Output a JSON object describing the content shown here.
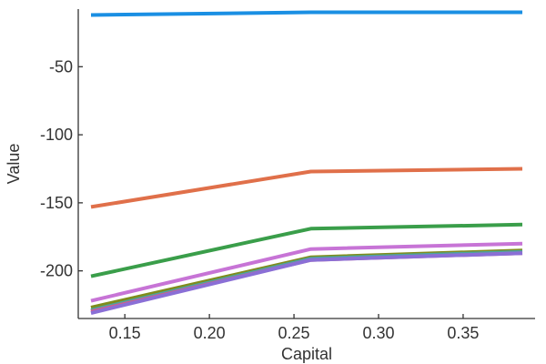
{
  "chart_data": {
    "type": "line",
    "title": "",
    "xlabel": "Capital",
    "ylabel": "Value",
    "x": [
      0.13,
      0.26,
      0.385
    ],
    "xlim": [
      0.13,
      0.385
    ],
    "ylim": [
      -235,
      -8
    ],
    "xticks": [
      0.15,
      0.2,
      0.25,
      0.3,
      0.35
    ],
    "xtick_labels": [
      "0.15",
      "0.20",
      "0.25",
      "0.30",
      "0.35"
    ],
    "yticks": [
      -50,
      -100,
      -150,
      -200
    ],
    "ytick_labels": [
      "-50",
      "-100",
      "-150",
      "-200"
    ],
    "grid": false,
    "legend": false,
    "series": [
      {
        "color": "#1a8fe3",
        "values": [
          -12,
          -10,
          -10
        ]
      },
      {
        "color": "#e0704a",
        "values": [
          -153,
          -127,
          -125
        ]
      },
      {
        "color": "#3a9e4a",
        "values": [
          -204,
          -169,
          -166
        ]
      },
      {
        "color": "#c774d6",
        "values": [
          -222,
          -184,
          -180
        ]
      },
      {
        "color": "#7f8c1c",
        "values": [
          -227,
          -190,
          -185
        ]
      },
      {
        "color": "#4ba3a3",
        "values": [
          -229,
          -191,
          -186
        ]
      },
      {
        "color": "#d45d8a",
        "values": [
          -230,
          -192,
          -187
        ]
      },
      {
        "color": "#8a6fd6",
        "values": [
          -231,
          -192,
          -187
        ]
      }
    ]
  }
}
